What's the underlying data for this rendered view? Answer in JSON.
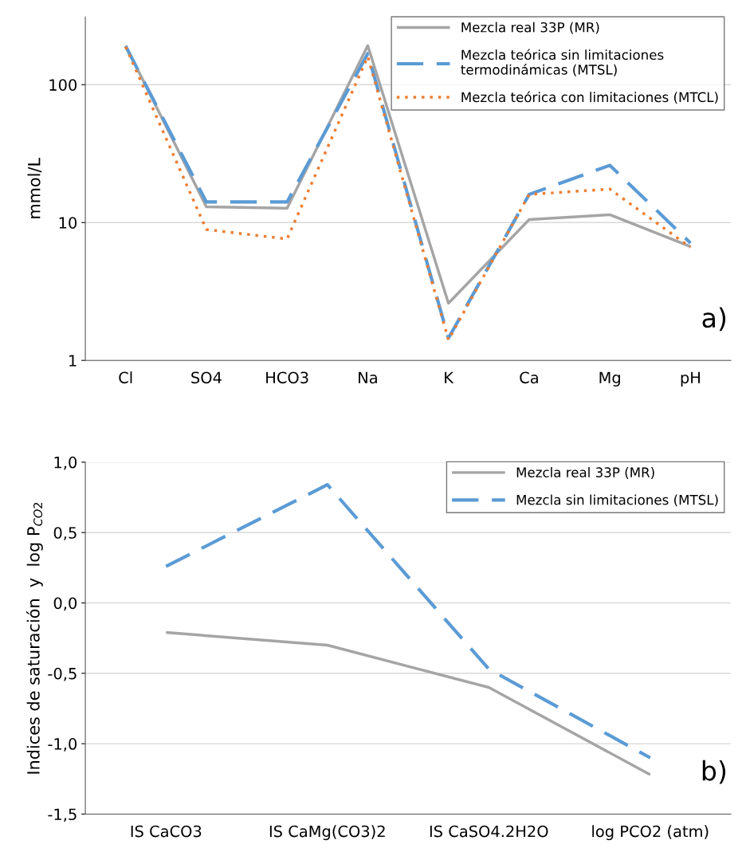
{
  "chart_data": [
    {
      "type": "line",
      "categories": [
        "Cl",
        "SO4",
        "HCO3",
        "Na",
        "K",
        "Ca",
        "Mg",
        "pH"
      ],
      "ylabel": "mmol/L",
      "log": "y",
      "ylim": [
        1,
        310
      ],
      "yticks": [
        1,
        10,
        100
      ],
      "grid": "y",
      "legend": "top right",
      "marker": "none",
      "annotations": [
        "a)"
      ],
      "series": [
        {
          "name": "Mezcla real 33P (MR)",
          "color": "#a5a5a5",
          "line_style": "solid",
          "values": [
            192,
            13,
            12.7,
            192,
            2.6,
            10.5,
            11.4,
            6.7
          ]
        },
        {
          "name": "Mezcla teórica sin limitaciones\ntermodinámicas (MTSL)",
          "color": "#5b9bd5",
          "line_style": "dashed",
          "values": [
            190,
            14.1,
            14.1,
            168,
            1.45,
            16,
            26,
            7.1
          ]
        },
        {
          "name": "Mezcla teórica con limitaciones (MTCL)",
          "color": "#ed7d31",
          "line_style": "dotted",
          "values": [
            188,
            8.9,
            7.6,
            160,
            1.41,
            16,
            17.5,
            6.6
          ]
        }
      ]
    },
    {
      "type": "line",
      "categories": [
        "IS CaCO3",
        "IS CaMg(CO3)2",
        "IS CaSO4.2H2O",
        "log PCO2 (atm)"
      ],
      "ylabel": "Indices de saturación  y  log P$_{CO2}$",
      "ylim": [
        -1.5,
        1.0
      ],
      "yticks": [
        {
          "value": -1.5,
          "label": "-1,5"
        },
        {
          "value": -1.0,
          "label": "-1,0"
        },
        {
          "value": -0.5,
          "label": "-0,5"
        },
        {
          "value": 0.0,
          "label": "0,0"
        },
        {
          "value": 0.5,
          "label": "0,5"
        },
        {
          "value": 1.0,
          "label": "1,0"
        }
      ],
      "grid": "y",
      "legend": "top right",
      "marker": "none",
      "annotations": [
        "b)"
      ],
      "series": [
        {
          "name": "Mezcla real 33P (MR)",
          "color": "#a5a5a5",
          "line_style": "solid",
          "values": [
            -0.21,
            -0.3,
            -0.6,
            -1.22
          ]
        },
        {
          "name": "Mezcla sin limitaciones (MTSL)",
          "color": "#5b9bd5",
          "line_style": "dashed",
          "values": [
            0.26,
            0.84,
            -0.47,
            -1.1
          ]
        }
      ]
    }
  ]
}
